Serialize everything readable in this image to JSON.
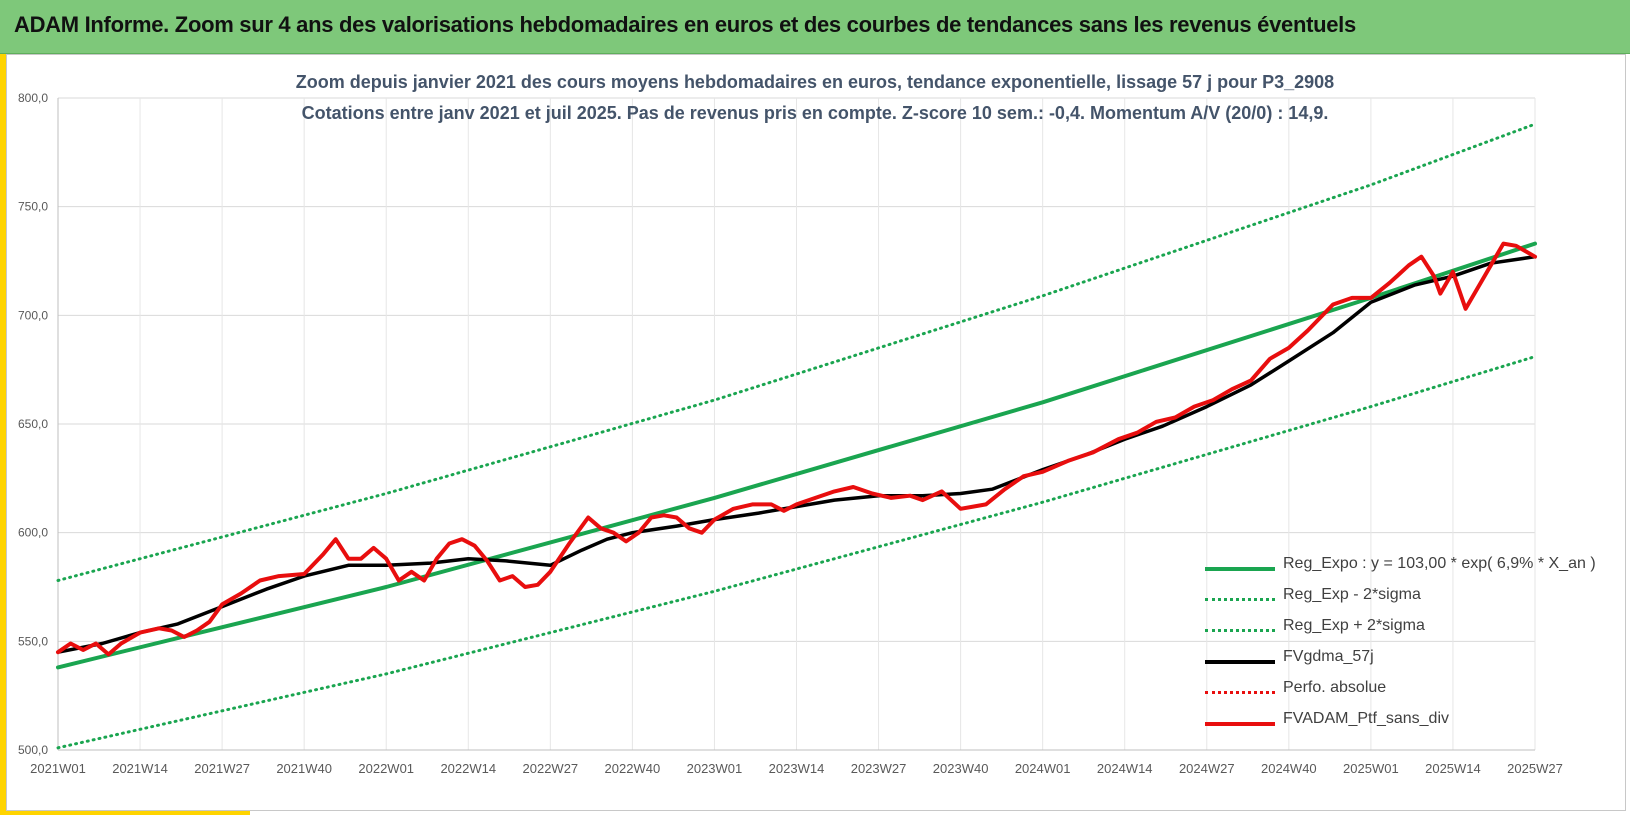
{
  "banner": {
    "title": "ADAM Informe. Zoom sur 4 ans des valorisations hebdomadaires en euros et des courbes de tendances sans les revenus éventuels"
  },
  "colors": {
    "banner_bg": "#7ec87a",
    "accent": "#ffd400",
    "trend": "#1aa550",
    "band": "#1aa550",
    "smooth": "#000000",
    "actual": "#e80e0e",
    "subtitle": "#44546a"
  },
  "chart_data": {
    "type": "line",
    "title": "Zoom depuis janvier 2021 des cours moyens hebdomadaires  en euros, tendance exponentielle, lissage 57 j pour P3_2908",
    "subtitle": "Cotations entre janv 2021 et juil 2025. Pas de revenus pris en compte. Z-score 10 sem.: -0,4. Momentum A/V (20/0) : 14,9.",
    "xlabel": "",
    "ylabel": "",
    "x_tick_labels": [
      "2021W01",
      "2021W14",
      "2021W27",
      "2021W40",
      "2022W01",
      "2022W14",
      "2022W27",
      "2022W40",
      "2023W01",
      "2023W14",
      "2023W27",
      "2023W40",
      "2024W01",
      "2024W14",
      "2024W27",
      "2024W40",
      "2025W01",
      "2025W14",
      "2025W27"
    ],
    "y_tick_labels": [
      "500,0",
      "550,0",
      "600,0",
      "650,0",
      "700,0",
      "750,0",
      "800,0"
    ],
    "ylim": [
      500,
      800
    ],
    "grid": true,
    "legend_position": "bottom-right",
    "series": [
      {
        "name": "Reg_Expo : y = 103,00 * exp( 6,9% *  X_an )",
        "style": "solid",
        "color": "#1aa550",
        "points": [
          [
            "2021W01",
            538
          ],
          [
            "2022W01",
            575
          ],
          [
            "2023W01",
            616
          ],
          [
            "2024W01",
            660
          ],
          [
            "2025W01",
            708
          ],
          [
            "2025W27",
            733
          ]
        ]
      },
      {
        "name": "Reg_Exp - 2*sigma",
        "style": "dotted",
        "color": "#1aa550",
        "points": [
          [
            "2021W01",
            501
          ],
          [
            "2022W01",
            535
          ],
          [
            "2023W01",
            573
          ],
          [
            "2024W01",
            614
          ],
          [
            "2025W01",
            658
          ],
          [
            "2025W27",
            681
          ]
        ]
      },
      {
        "name": "Reg_Exp + 2*sigma",
        "style": "dotted",
        "color": "#1aa550",
        "points": [
          [
            "2021W01",
            578
          ],
          [
            "2022W01",
            618
          ],
          [
            "2023W01",
            661
          ],
          [
            "2024W01",
            709
          ],
          [
            "2025W01",
            760
          ],
          [
            "2025W27",
            788
          ]
        ]
      },
      {
        "name": "FVgdma_57j",
        "style": "solid",
        "color": "#000000",
        "points": [
          [
            "2021W01",
            545
          ],
          [
            "2021W08",
            549
          ],
          [
            "2021W14",
            554
          ],
          [
            "2021W20",
            558
          ],
          [
            "2021W27",
            566
          ],
          [
            "2021W34",
            574
          ],
          [
            "2021W40",
            580
          ],
          [
            "2021W47",
            585
          ],
          [
            "2022W01",
            585
          ],
          [
            "2022W08",
            586
          ],
          [
            "2022W14",
            588
          ],
          [
            "2022W20",
            587
          ],
          [
            "2022W27",
            585
          ],
          [
            "2022W32",
            592
          ],
          [
            "2022W36",
            597
          ],
          [
            "2022W40",
            600
          ],
          [
            "2022W47",
            603
          ],
          [
            "2023W01",
            606
          ],
          [
            "2023W08",
            609
          ],
          [
            "2023W14",
            612
          ],
          [
            "2023W20",
            615
          ],
          [
            "2023W27",
            617
          ],
          [
            "2023W34",
            617
          ],
          [
            "2023W40",
            618
          ],
          [
            "2023W45",
            620
          ],
          [
            "2024W01",
            629
          ],
          [
            "2024W08",
            636
          ],
          [
            "2024W14",
            643
          ],
          [
            "2024W20",
            649
          ],
          [
            "2024W27",
            658
          ],
          [
            "2024W34",
            668
          ],
          [
            "2024W40",
            679
          ],
          [
            "2024W47",
            692
          ],
          [
            "2025W01",
            706
          ],
          [
            "2025W08",
            714
          ],
          [
            "2025W14",
            718
          ],
          [
            "2025W20",
            724
          ],
          [
            "2025W27",
            727
          ]
        ]
      },
      {
        "name": "Perfo. absolue",
        "style": "dotted",
        "color": "#e80e0e",
        "points": []
      },
      {
        "name": "FVADAM_Ptf_sans_div",
        "style": "solid",
        "color": "#e80e0e",
        "points": [
          [
            "2021W01",
            545
          ],
          [
            "2021W03",
            549
          ],
          [
            "2021W05",
            546
          ],
          [
            "2021W07",
            549
          ],
          [
            "2021W09",
            544
          ],
          [
            "2021W11",
            549
          ],
          [
            "2021W14",
            554
          ],
          [
            "2021W17",
            556
          ],
          [
            "2021W19",
            555
          ],
          [
            "2021W21",
            552
          ],
          [
            "2021W23",
            555
          ],
          [
            "2021W25",
            559
          ],
          [
            "2021W27",
            567
          ],
          [
            "2021W30",
            572
          ],
          [
            "2021W33",
            578
          ],
          [
            "2021W36",
            580
          ],
          [
            "2021W40",
            581
          ],
          [
            "2021W43",
            590
          ],
          [
            "2021W45",
            597
          ],
          [
            "2021W47",
            588
          ],
          [
            "2021W49",
            588
          ],
          [
            "2021W51",
            593
          ],
          [
            "2022W01",
            588
          ],
          [
            "2022W03",
            578
          ],
          [
            "2022W05",
            582
          ],
          [
            "2022W07",
            578
          ],
          [
            "2022W09",
            588
          ],
          [
            "2022W11",
            595
          ],
          [
            "2022W13",
            597
          ],
          [
            "2022W15",
            594
          ],
          [
            "2022W17",
            587
          ],
          [
            "2022W19",
            578
          ],
          [
            "2022W21",
            580
          ],
          [
            "2022W23",
            575
          ],
          [
            "2022W25",
            576
          ],
          [
            "2022W27",
            582
          ],
          [
            "2022W30",
            595
          ],
          [
            "2022W33",
            607
          ],
          [
            "2022W35",
            602
          ],
          [
            "2022W37",
            600
          ],
          [
            "2022W39",
            596
          ],
          [
            "2022W41",
            600
          ],
          [
            "2022W43",
            607
          ],
          [
            "2022W45",
            608
          ],
          [
            "2022W47",
            607
          ],
          [
            "2022W49",
            602
          ],
          [
            "2022W51",
            600
          ],
          [
            "2023W01",
            606
          ],
          [
            "2023W04",
            611
          ],
          [
            "2023W07",
            613
          ],
          [
            "2023W10",
            613
          ],
          [
            "2023W12",
            610
          ],
          [
            "2023W14",
            613
          ],
          [
            "2023W17",
            616
          ],
          [
            "2023W20",
            619
          ],
          [
            "2023W23",
            621
          ],
          [
            "2023W26",
            618
          ],
          [
            "2023W29",
            616
          ],
          [
            "2023W32",
            617
          ],
          [
            "2023W34",
            615
          ],
          [
            "2023W37",
            619
          ],
          [
            "2023W40",
            611
          ],
          [
            "2023W42",
            612
          ],
          [
            "2023W44",
            613
          ],
          [
            "2023W47",
            620
          ],
          [
            "2023W50",
            626
          ],
          [
            "2024W01",
            628
          ],
          [
            "2024W05",
            633
          ],
          [
            "2024W09",
            637
          ],
          [
            "2024W13",
            643
          ],
          [
            "2024W16",
            646
          ],
          [
            "2024W19",
            651
          ],
          [
            "2024W22",
            653
          ],
          [
            "2024W25",
            658
          ],
          [
            "2024W28",
            661
          ],
          [
            "2024W31",
            666
          ],
          [
            "2024W34",
            670
          ],
          [
            "2024W37",
            680
          ],
          [
            "2024W40",
            685
          ],
          [
            "2024W43",
            693
          ],
          [
            "2024W47",
            705
          ],
          [
            "2024W50",
            708
          ],
          [
            "2025W01",
            708
          ],
          [
            "2025W04",
            715
          ],
          [
            "2025W07",
            723
          ],
          [
            "2025W09",
            727
          ],
          [
            "2025W11",
            718
          ],
          [
            "2025W12",
            710
          ],
          [
            "2025W14",
            720
          ],
          [
            "2025W16",
            703
          ],
          [
            "2025W19",
            718
          ],
          [
            "2025W22",
            733
          ],
          [
            "2025W24",
            732
          ],
          [
            "2025W27",
            727
          ]
        ]
      }
    ]
  }
}
